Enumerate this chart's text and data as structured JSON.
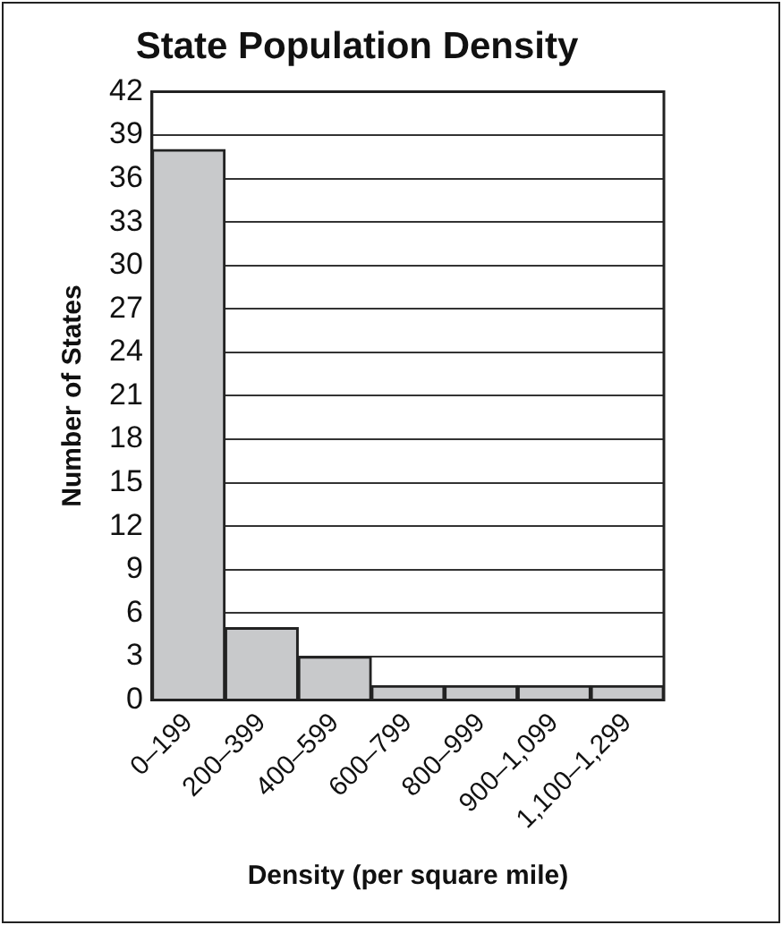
{
  "chart_data": {
    "type": "bar",
    "title": "State Population Density",
    "xlabel": "Density (per square mile)",
    "ylabel": "Number of States",
    "categories": [
      "0–199",
      "200–399",
      "400–599",
      "600–799",
      "800–999",
      "900–1,099",
      "1,100–1,299"
    ],
    "values": [
      38,
      5,
      3,
      1,
      1,
      1,
      1
    ],
    "color": "#c8c9cb",
    "ylim": [
      0,
      42
    ],
    "yticks": [
      0,
      3,
      6,
      9,
      12,
      15,
      18,
      21,
      24,
      27,
      30,
      33,
      36,
      39,
      42
    ],
    "grid": "y"
  }
}
